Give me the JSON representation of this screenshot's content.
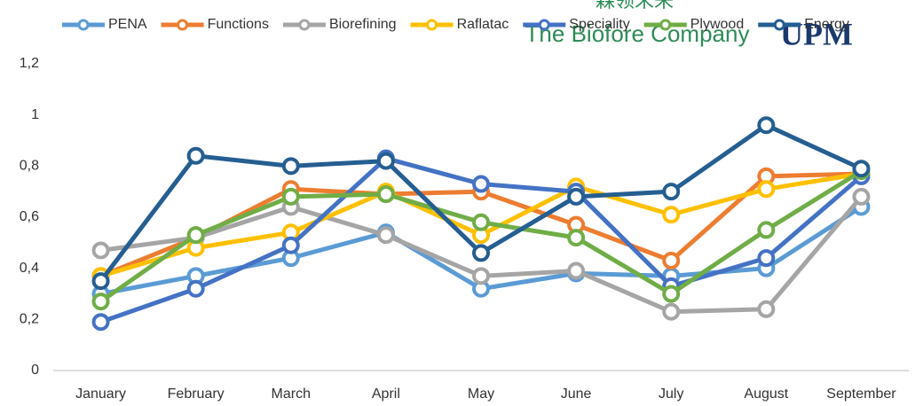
{
  "chart_data": {
    "type": "line",
    "categories": [
      "January",
      "February",
      "March",
      "April",
      "May",
      "June",
      "July",
      "August",
      "September"
    ],
    "series": [
      {
        "name": "PENA",
        "color": "#5b9bd5",
        "values": [
          0.3,
          0.37,
          0.44,
          0.54,
          0.32,
          0.38,
          0.37,
          0.4,
          0.64
        ]
      },
      {
        "name": "Functions",
        "color": "#ed7d31",
        "values": [
          0.37,
          0.52,
          0.71,
          0.69,
          0.7,
          0.57,
          0.43,
          0.76,
          0.77
        ]
      },
      {
        "name": "Biorefining",
        "color": "#a5a5a5",
        "values": [
          0.47,
          0.52,
          0.64,
          0.53,
          0.37,
          0.39,
          0.23,
          0.24,
          0.68
        ]
      },
      {
        "name": "Raflatac",
        "color": "#ffc000",
        "values": [
          0.37,
          0.48,
          0.54,
          0.7,
          0.53,
          0.72,
          0.61,
          0.71,
          0.77
        ]
      },
      {
        "name": "Speciality",
        "color": "#4472c4",
        "values": [
          0.19,
          0.32,
          0.49,
          0.83,
          0.73,
          0.7,
          0.33,
          0.44,
          0.76
        ]
      },
      {
        "name": "Plywood",
        "color": "#70ad47",
        "values": [
          0.27,
          0.53,
          0.68,
          0.69,
          0.58,
          0.52,
          0.3,
          0.55,
          0.78
        ]
      },
      {
        "name": "Energy",
        "color": "#255e91",
        "values": [
          0.35,
          0.84,
          0.8,
          0.82,
          0.46,
          0.68,
          0.7,
          0.96,
          0.79
        ]
      }
    ],
    "ylim": [
      0,
      1.2
    ],
    "yticks": [
      0,
      {
        "value": 0.2,
        "label": "0,2"
      },
      {
        "value": 0.4,
        "label": "0,4"
      },
      {
        "value": 0.6,
        "label": "0,6"
      },
      {
        "value": 0.8,
        "label": "0,8"
      },
      1,
      {
        "value": 1.2,
        "label": "1,2"
      }
    ],
    "grid": false,
    "legend": "top"
  },
  "logo": {
    "chinese": "森领未来",
    "tagline": "The Biofore Company",
    "brand": "UPM"
  }
}
